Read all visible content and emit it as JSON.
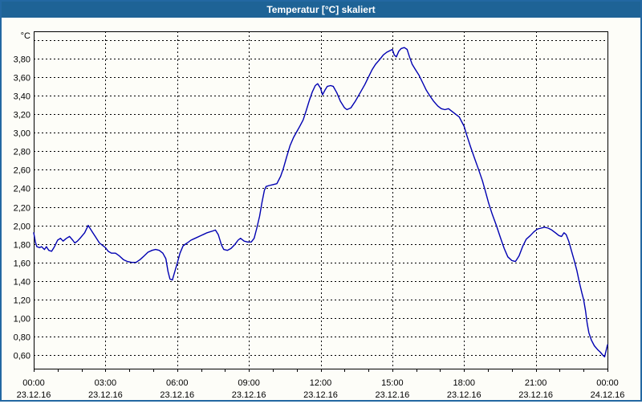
{
  "window": {
    "title": "Temperatur [°C] skaliert"
  },
  "colors": {
    "titlebar": "#1e6396",
    "frame": "#2368a2",
    "background": "#fdfdf8",
    "plot_border": "#000000",
    "grid": "#000000",
    "line": "#0000b2",
    "label": "#000000"
  },
  "chart_data": {
    "type": "line",
    "title": "Temperatur [°C] skaliert",
    "xlabel": "",
    "ylabel": "",
    "unit_label": "°C",
    "x_range_hours": [
      0,
      24
    ],
    "y_grid_range": [
      0.6,
      4.0
    ],
    "y_grid_step": 0.2,
    "grid": "dashed",
    "legend": "none",
    "minor_x_tick_hours": 1,
    "y_ticks": [
      {
        "v": 4.0,
        "label": ""
      },
      {
        "v": 3.8,
        "label": "3,80"
      },
      {
        "v": 3.6,
        "label": "3,60"
      },
      {
        "v": 3.4,
        "label": "3,40"
      },
      {
        "v": 3.2,
        "label": "3,20"
      },
      {
        "v": 3.0,
        "label": "3,00"
      },
      {
        "v": 2.8,
        "label": "2,80"
      },
      {
        "v": 2.6,
        "label": "2,60"
      },
      {
        "v": 2.4,
        "label": "2,40"
      },
      {
        "v": 2.2,
        "label": "2,20"
      },
      {
        "v": 2.0,
        "label": "2,00"
      },
      {
        "v": 1.8,
        "label": "1,80"
      },
      {
        "v": 1.6,
        "label": "1,60"
      },
      {
        "v": 1.4,
        "label": "1,40"
      },
      {
        "v": 1.2,
        "label": "1,20"
      },
      {
        "v": 1.0,
        "label": "1,00"
      },
      {
        "v": 0.8,
        "label": "0,80"
      },
      {
        "v": 0.6,
        "label": "0,60"
      }
    ],
    "x_ticks": [
      {
        "t": 0,
        "time": "00:00",
        "date": "23.12.16"
      },
      {
        "t": 3,
        "time": "03:00",
        "date": "23.12.16"
      },
      {
        "t": 6,
        "time": "06:00",
        "date": "23.12.16"
      },
      {
        "t": 9,
        "time": "09:00",
        "date": "23.12.16"
      },
      {
        "t": 12,
        "time": "12:00",
        "date": "23.12.16"
      },
      {
        "t": 15,
        "time": "15:00",
        "date": "23.12.16"
      },
      {
        "t": 18,
        "time": "18:00",
        "date": "23.12.16"
      },
      {
        "t": 21,
        "time": "21:00",
        "date": "23.12.16"
      },
      {
        "t": 24,
        "time": "00:00",
        "date": "24.12.16"
      }
    ],
    "series": [
      {
        "name": "Temperatur",
        "points": [
          [
            0.0,
            1.92
          ],
          [
            0.07,
            1.82
          ],
          [
            0.13,
            1.77
          ],
          [
            0.25,
            1.76
          ],
          [
            0.33,
            1.77
          ],
          [
            0.45,
            1.74
          ],
          [
            0.53,
            1.77
          ],
          [
            0.63,
            1.73
          ],
          [
            0.75,
            1.72
          ],
          [
            0.87,
            1.77
          ],
          [
            1.0,
            1.84
          ],
          [
            1.12,
            1.86
          ],
          [
            1.23,
            1.83
          ],
          [
            1.37,
            1.86
          ],
          [
            1.5,
            1.88
          ],
          [
            1.63,
            1.84
          ],
          [
            1.72,
            1.81
          ],
          [
            1.83,
            1.83
          ],
          [
            1.97,
            1.87
          ],
          [
            2.13,
            1.92
          ],
          [
            2.28,
            2.0
          ],
          [
            2.45,
            1.93
          ],
          [
            2.6,
            1.87
          ],
          [
            2.75,
            1.81
          ],
          [
            3.0,
            1.76
          ],
          [
            3.12,
            1.72
          ],
          [
            3.25,
            1.7
          ],
          [
            3.42,
            1.7
          ],
          [
            3.58,
            1.67
          ],
          [
            3.75,
            1.63
          ],
          [
            3.92,
            1.61
          ],
          [
            4.1,
            1.6
          ],
          [
            4.28,
            1.6
          ],
          [
            4.45,
            1.63
          ],
          [
            4.62,
            1.67
          ],
          [
            4.78,
            1.71
          ],
          [
            4.95,
            1.73
          ],
          [
            5.1,
            1.74
          ],
          [
            5.25,
            1.73
          ],
          [
            5.4,
            1.7
          ],
          [
            5.53,
            1.64
          ],
          [
            5.62,
            1.5
          ],
          [
            5.7,
            1.42
          ],
          [
            5.8,
            1.41
          ],
          [
            5.9,
            1.5
          ],
          [
            6.0,
            1.59
          ],
          [
            6.12,
            1.7
          ],
          [
            6.25,
            1.78
          ],
          [
            6.42,
            1.81
          ],
          [
            6.58,
            1.84
          ],
          [
            6.75,
            1.86
          ],
          [
            7.0,
            1.89
          ],
          [
            7.25,
            1.92
          ],
          [
            7.5,
            1.94
          ],
          [
            7.6,
            1.95
          ],
          [
            7.72,
            1.9
          ],
          [
            7.85,
            1.79
          ],
          [
            7.95,
            1.74
          ],
          [
            8.1,
            1.73
          ],
          [
            8.25,
            1.75
          ],
          [
            8.4,
            1.79
          ],
          [
            8.55,
            1.84
          ],
          [
            8.65,
            1.86
          ],
          [
            8.8,
            1.83
          ],
          [
            8.95,
            1.82
          ],
          [
            9.1,
            1.82
          ],
          [
            9.22,
            1.86
          ],
          [
            9.33,
            1.97
          ],
          [
            9.45,
            2.1
          ],
          [
            9.55,
            2.25
          ],
          [
            9.65,
            2.38
          ],
          [
            9.72,
            2.42
          ],
          [
            9.85,
            2.43
          ],
          [
            10.0,
            2.44
          ],
          [
            10.17,
            2.45
          ],
          [
            10.33,
            2.53
          ],
          [
            10.45,
            2.62
          ],
          [
            10.58,
            2.74
          ],
          [
            10.72,
            2.86
          ],
          [
            10.87,
            2.95
          ],
          [
            11.0,
            3.01
          ],
          [
            11.13,
            3.07
          ],
          [
            11.27,
            3.14
          ],
          [
            11.4,
            3.24
          ],
          [
            11.53,
            3.35
          ],
          [
            11.65,
            3.44
          ],
          [
            11.78,
            3.51
          ],
          [
            11.88,
            3.53
          ],
          [
            12.0,
            3.48
          ],
          [
            12.08,
            3.41
          ],
          [
            12.18,
            3.46
          ],
          [
            12.28,
            3.5
          ],
          [
            12.42,
            3.51
          ],
          [
            12.53,
            3.5
          ],
          [
            12.68,
            3.43
          ],
          [
            12.83,
            3.34
          ],
          [
            13.0,
            3.27
          ],
          [
            13.1,
            3.25
          ],
          [
            13.27,
            3.27
          ],
          [
            13.45,
            3.34
          ],
          [
            13.65,
            3.43
          ],
          [
            13.85,
            3.52
          ],
          [
            14.0,
            3.6
          ],
          [
            14.15,
            3.68
          ],
          [
            14.3,
            3.74
          ],
          [
            14.47,
            3.79
          ],
          [
            14.62,
            3.84
          ],
          [
            14.77,
            3.87
          ],
          [
            14.92,
            3.89
          ],
          [
            15.0,
            3.9
          ],
          [
            15.08,
            3.84
          ],
          [
            15.17,
            3.82
          ],
          [
            15.27,
            3.88
          ],
          [
            15.37,
            3.91
          ],
          [
            15.5,
            3.92
          ],
          [
            15.62,
            3.9
          ],
          [
            15.72,
            3.82
          ],
          [
            15.83,
            3.74
          ],
          [
            15.97,
            3.68
          ],
          [
            16.12,
            3.62
          ],
          [
            16.27,
            3.54
          ],
          [
            16.42,
            3.46
          ],
          [
            16.57,
            3.4
          ],
          [
            16.73,
            3.34
          ],
          [
            16.9,
            3.29
          ],
          [
            17.05,
            3.26
          ],
          [
            17.2,
            3.25
          ],
          [
            17.35,
            3.26
          ],
          [
            17.5,
            3.23
          ],
          [
            17.65,
            3.2
          ],
          [
            17.8,
            3.17
          ],
          [
            17.9,
            3.12
          ],
          [
            18.0,
            3.07
          ],
          [
            18.12,
            2.97
          ],
          [
            18.27,
            2.85
          ],
          [
            18.43,
            2.73
          ],
          [
            18.6,
            2.61
          ],
          [
            18.77,
            2.48
          ],
          [
            18.9,
            2.36
          ],
          [
            19.03,
            2.24
          ],
          [
            19.18,
            2.12
          ],
          [
            19.35,
            2.0
          ],
          [
            19.52,
            1.87
          ],
          [
            19.68,
            1.75
          ],
          [
            19.83,
            1.66
          ],
          [
            20.0,
            1.62
          ],
          [
            20.15,
            1.61
          ],
          [
            20.3,
            1.67
          ],
          [
            20.45,
            1.77
          ],
          [
            20.6,
            1.85
          ],
          [
            20.77,
            1.89
          ],
          [
            20.92,
            1.93
          ],
          [
            21.07,
            1.96
          ],
          [
            21.22,
            1.97
          ],
          [
            21.37,
            1.98
          ],
          [
            21.52,
            1.97
          ],
          [
            21.67,
            1.95
          ],
          [
            21.82,
            1.92
          ],
          [
            21.97,
            1.89
          ],
          [
            22.08,
            1.88
          ],
          [
            22.18,
            1.92
          ],
          [
            22.27,
            1.9
          ],
          [
            22.38,
            1.83
          ],
          [
            22.5,
            1.72
          ],
          [
            22.62,
            1.61
          ],
          [
            22.72,
            1.51
          ],
          [
            22.82,
            1.39
          ],
          [
            22.93,
            1.27
          ],
          [
            23.0,
            1.2
          ],
          [
            23.08,
            1.08
          ],
          [
            23.15,
            0.94
          ],
          [
            23.22,
            0.84
          ],
          [
            23.33,
            0.76
          ],
          [
            23.45,
            0.7
          ],
          [
            23.58,
            0.66
          ],
          [
            23.7,
            0.63
          ],
          [
            23.8,
            0.6
          ],
          [
            23.88,
            0.58
          ],
          [
            24.0,
            0.71
          ]
        ]
      }
    ]
  }
}
